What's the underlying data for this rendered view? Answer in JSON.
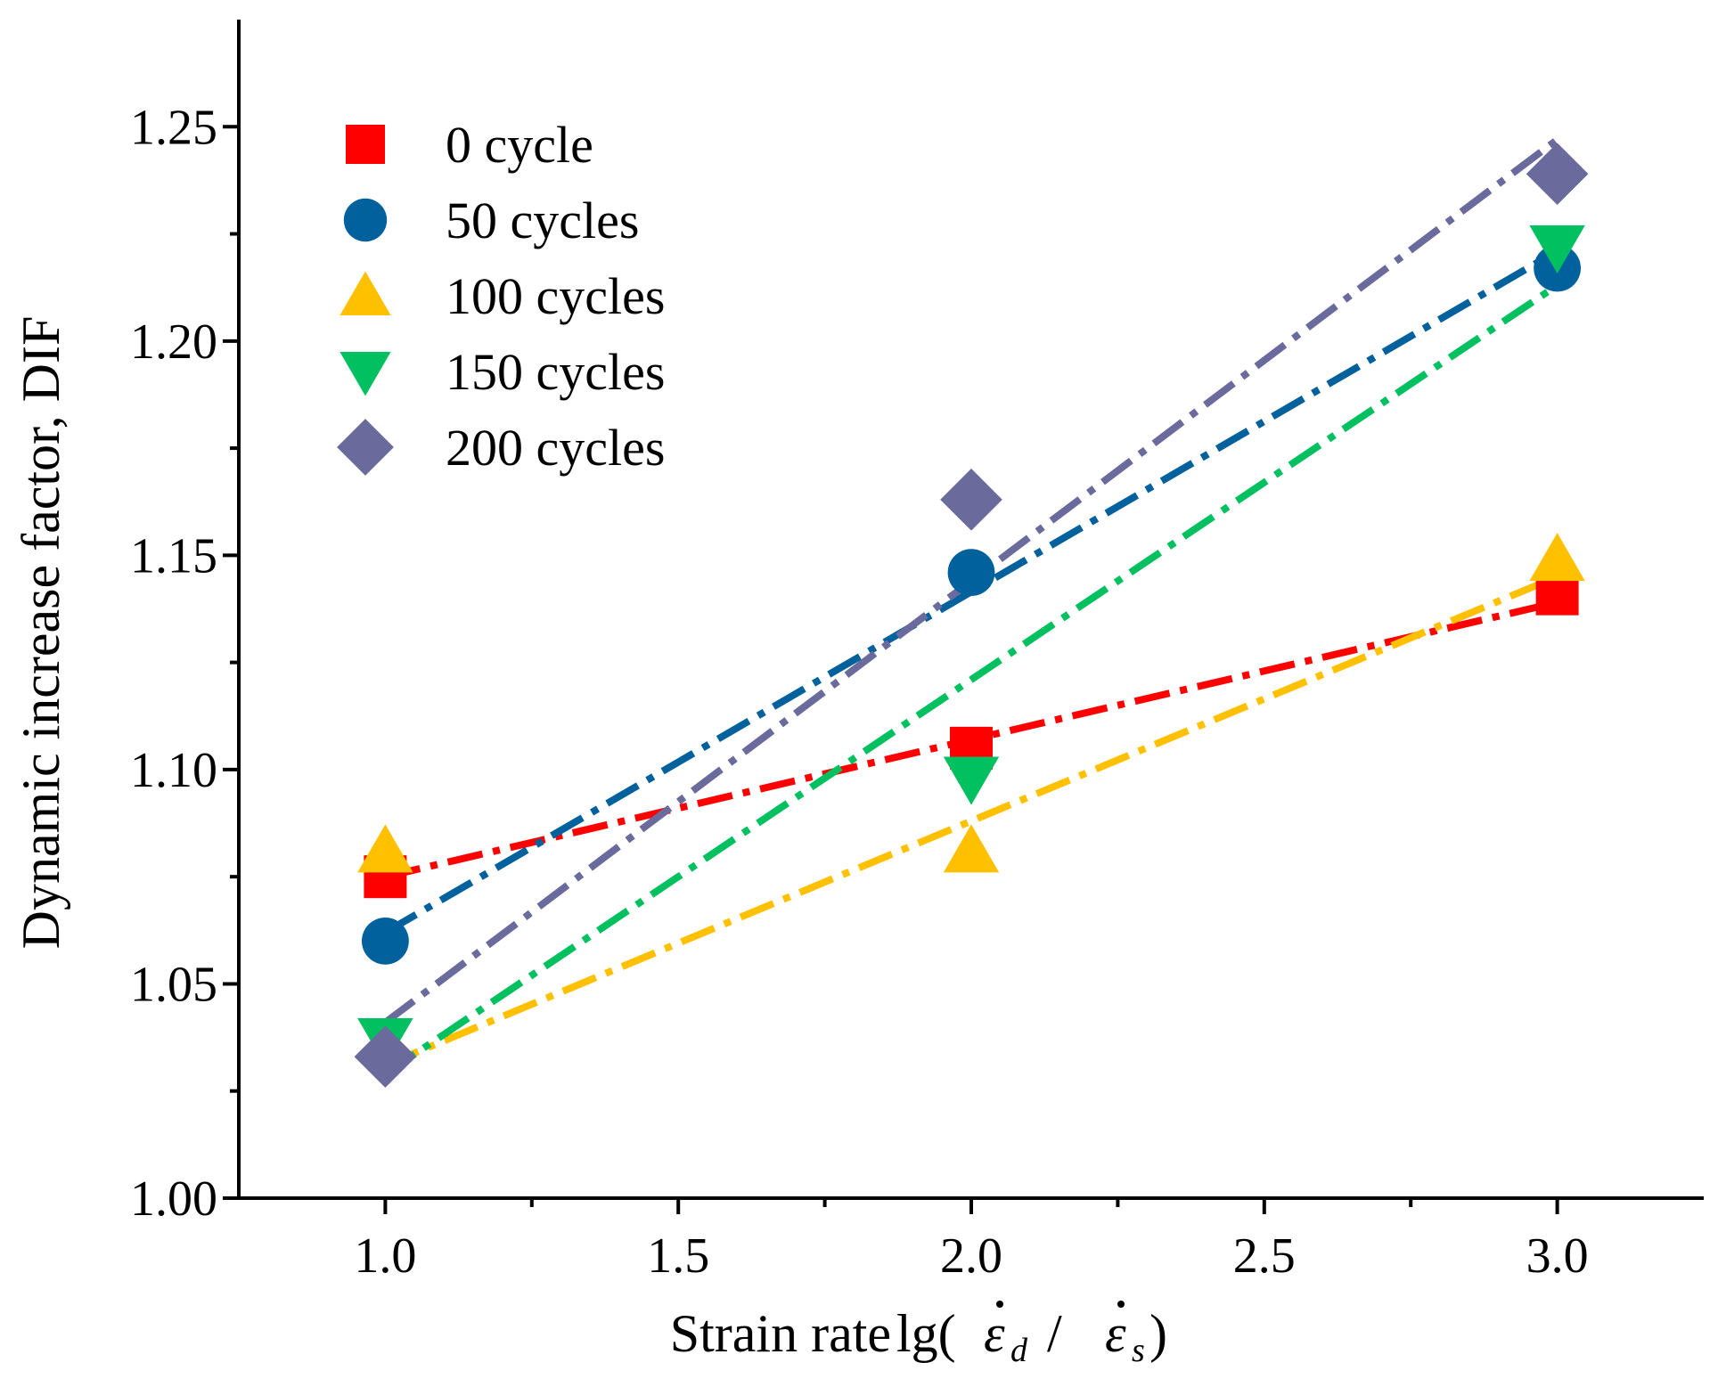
{
  "chart_data": {
    "type": "scatter",
    "title": "",
    "xlabel": "Strain rate",
    "xlabel_math": {
      "prefix": "lg(",
      "num_symbol": "ε",
      "num_sub": "d",
      "divider": " / ",
      "den_symbol": "ε",
      "den_sub": "s",
      "suffix": ")"
    },
    "ylabel": "Dynamic increase factor, DIF",
    "xlim": [
      0.75,
      3.25
    ],
    "ylim": [
      1.0,
      1.275
    ],
    "xticks": [
      1.0,
      1.5,
      2.0,
      2.5,
      3.0
    ],
    "xtick_labels": [
      "1.0",
      "1.5",
      "2.0",
      "2.5",
      "3.0"
    ],
    "xminor": [
      1.25,
      1.75,
      2.25,
      2.75
    ],
    "yticks": [
      1.0,
      1.05,
      1.1,
      1.15,
      1.2,
      1.25
    ],
    "ytick_labels": [
      "1.00",
      "1.05",
      "1.10",
      "1.15",
      "1.20",
      "1.25"
    ],
    "yminor": [
      1.025,
      1.075,
      1.125,
      1.175,
      1.225
    ],
    "grid": false,
    "legend_position": "top-left",
    "x": [
      1.0,
      2.0,
      3.0
    ],
    "series": [
      {
        "name": "0 cycle",
        "marker": "square",
        "color": "#ff0000",
        "values": [
          1.075,
          1.105,
          1.141
        ],
        "fit": [
          1.075,
          1.139
        ]
      },
      {
        "name": "50 cycles",
        "marker": "circle",
        "color": "#00619d",
        "values": [
          1.06,
          1.146,
          1.217
        ],
        "fit": [
          1.062,
          1.221
        ]
      },
      {
        "name": "100 cycles",
        "marker": "triangle-up",
        "color": "#ffc000",
        "values": [
          1.081,
          1.081,
          1.149
        ],
        "fit": [
          1.031,
          1.145
        ]
      },
      {
        "name": "150 cycles",
        "marker": "triangle-down",
        "color": "#00c060",
        "values": [
          1.037,
          1.098,
          1.222
        ],
        "fit": [
          1.029,
          1.213
        ]
      },
      {
        "name": "200 cycles",
        "marker": "diamond",
        "color": "#6a6a9d",
        "values": [
          1.033,
          1.163,
          1.239
        ],
        "fit": [
          1.041,
          1.247
        ]
      }
    ]
  }
}
